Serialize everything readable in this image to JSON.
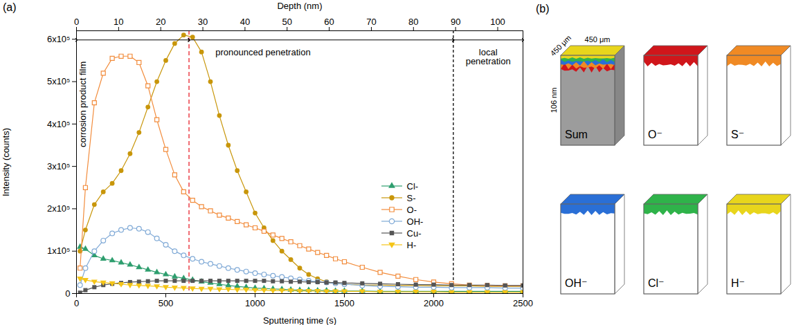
{
  "chart_data": {
    "type": "line",
    "panel_label": "(a)",
    "x_label": "Sputtering time (s)",
    "y_label": "Intensity (counts)",
    "x2_label": "Depth (nm)",
    "grid": false,
    "legend": "center right",
    "x": [
      20,
      50,
      100,
      150,
      200,
      250,
      300,
      350,
      400,
      450,
      500,
      550,
      600,
      650,
      700,
      750,
      800,
      850,
      900,
      950,
      1000,
      1050,
      1100,
      1150,
      1200,
      1250,
      1300,
      1350,
      1400,
      1450,
      1500,
      1600,
      1700,
      1800,
      1900,
      2000,
      2100,
      2200,
      2300,
      2400,
      2500
    ],
    "xlim": [
      0,
      2500
    ],
    "xticks": [
      0,
      500,
      1000,
      1500,
      2000,
      2500
    ],
    "x2lim": [
      0,
      106
    ],
    "x2ticks": [
      0,
      10,
      20,
      30,
      40,
      50,
      60,
      70,
      80,
      90,
      100
    ],
    "ylim": [
      0,
      620000
    ],
    "yticks": [
      0,
      {
        "value": 100000,
        "label": "1x10⁵"
      },
      {
        "value": 200000,
        "label": "2x10⁵"
      },
      {
        "value": 300000,
        "label": "3x10⁵"
      },
      {
        "value": 400000,
        "label": "4x10⁵"
      },
      {
        "value": 500000,
        "label": "5x10⁵"
      },
      {
        "value": 600000,
        "label": "6x10⁵"
      }
    ],
    "series": [
      {
        "name": "Cl-",
        "color": "#2e9e6e",
        "marker": "triangle",
        "values": [
          110000,
          105000,
          90000,
          82000,
          78000,
          73000,
          68000,
          62000,
          56000,
          50000,
          45000,
          40000,
          36000,
          32000,
          28000,
          25000,
          22000,
          19000,
          17000,
          15000,
          13000,
          12000,
          11000,
          10000,
          9000,
          8000,
          8000,
          7000,
          7000,
          6000,
          6000,
          6000,
          5000,
          5000,
          5000,
          5000,
          5000,
          5000,
          5000,
          5000,
          5000
        ]
      },
      {
        "name": "S-",
        "color": "#c8960a",
        "marker": "circle",
        "values": [
          100000,
          150000,
          210000,
          240000,
          260000,
          290000,
          330000,
          380000,
          440000,
          500000,
          550000,
          590000,
          610000,
          605000,
          570000,
          500000,
          420000,
          350000,
          290000,
          240000,
          190000,
          155000,
          125000,
          100000,
          80000,
          60000,
          45000,
          35000,
          28000,
          24000,
          22000,
          20000,
          20000,
          19000,
          19000,
          18000,
          18000,
          18000,
          17000,
          17000,
          17000
        ]
      },
      {
        "name": "O-",
        "color": "#f28c3c",
        "marker": "square-open",
        "values": [
          60000,
          250000,
          450000,
          520000,
          555000,
          560000,
          560000,
          545000,
          490000,
          410000,
          340000,
          280000,
          240000,
          220000,
          205000,
          195000,
          185000,
          178000,
          170000,
          162000,
          155000,
          147000,
          138000,
          130000,
          122000,
          113000,
          105000,
          97000,
          90000,
          82000,
          75000,
          62000,
          50000,
          41000,
          33000,
          27000,
          23000,
          20000,
          19000,
          18000,
          18000
        ]
      },
      {
        "name": "OH-",
        "color": "#7fa9d6",
        "marker": "circle-open",
        "values": [
          20000,
          60000,
          100000,
          125000,
          142000,
          150000,
          155000,
          153000,
          145000,
          130000,
          115000,
          100000,
          90000,
          82000,
          75000,
          70000,
          65000,
          60000,
          56000,
          52000,
          48000,
          45000,
          42000,
          39000,
          36000,
          33000,
          30000,
          28000,
          26000,
          24000,
          22000,
          19000,
          17000,
          16000,
          15000,
          15000,
          14000,
          14000,
          14000,
          13000,
          13000
        ]
      },
      {
        "name": "Cu-",
        "color": "#555555",
        "marker": "square",
        "values": [
          2000,
          8000,
          15000,
          20000,
          23000,
          25000,
          27000,
          28000,
          29000,
          30000,
          30000,
          30000,
          30000,
          30000,
          30000,
          30000,
          30000,
          30000,
          30000,
          30000,
          30000,
          30000,
          29000,
          29000,
          28000,
          28000,
          27000,
          27000,
          26000,
          26000,
          25000,
          24000,
          23000,
          22000,
          21000,
          21000,
          20000,
          20000,
          20000,
          19000,
          19000
        ]
      },
      {
        "name": "H-",
        "color": "#f5c518",
        "marker": "triangle-down",
        "values": [
          35000,
          32000,
          28000,
          26000,
          24000,
          22000,
          20000,
          19000,
          18000,
          17000,
          15000,
          14000,
          13000,
          12000,
          11000,
          11000,
          10000,
          10000,
          9000,
          9000,
          8000,
          8000,
          7000,
          7000,
          7000,
          6000,
          6000,
          6000,
          5000,
          5000,
          5000,
          5000,
          4000,
          4000,
          4000,
          4000,
          3000,
          3000,
          3000,
          3000,
          3000
        ]
      }
    ],
    "vlines": [
      {
        "x": 630,
        "color": "#e8202a",
        "line_style": "dashed"
      },
      {
        "x": 2110,
        "color": "#000000",
        "line_style": "dashed"
      }
    ],
    "annotations": [
      {
        "text": "corrosion product film",
        "from": 0,
        "to": 630
      },
      {
        "text": "pronounced penetration",
        "from": 630,
        "to": 2110
      },
      {
        "text": "local penetration",
        "from": 2110,
        "to": 2500
      }
    ]
  },
  "panel_b": {
    "panel_label": "(b)",
    "dimensions": {
      "x": "450 μm",
      "y": "450 μm",
      "z": "106 nm"
    },
    "cubes": [
      {
        "name": "Sum",
        "colors": [
          "#e8d51c",
          "#2fb34a",
          "#2a6fd6",
          "#f08a24",
          "#d0161b",
          "#9c9c9c"
        ]
      },
      {
        "name": "O⁻",
        "color": "#d0161b"
      },
      {
        "name": "S⁻",
        "color": "#f08a24"
      },
      {
        "name": "OH⁻",
        "color": "#2a6fd6"
      },
      {
        "name": "Cl⁻",
        "color": "#2fb34a"
      },
      {
        "name": "H⁻",
        "color": "#e8d51c"
      }
    ]
  }
}
